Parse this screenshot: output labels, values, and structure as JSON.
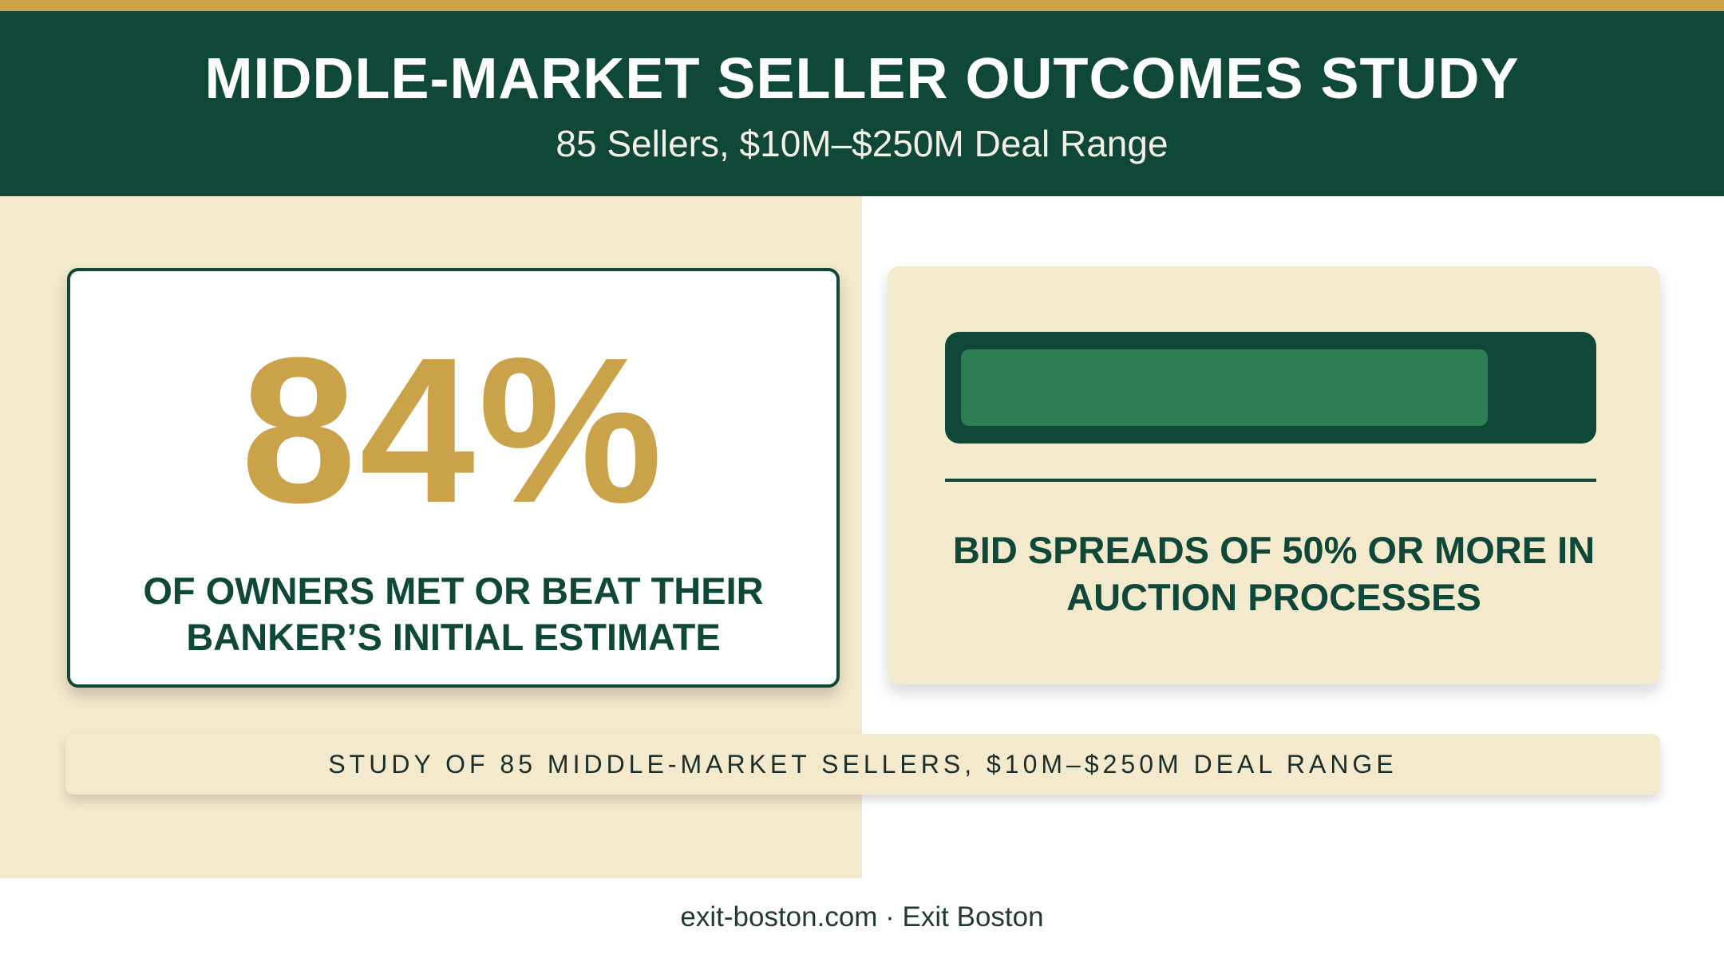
{
  "header": {
    "title": "MIDDLE-MARKET SELLER OUTCOMES STUDY",
    "subtitle": "85 Sellers, $10M–$250M Deal Range"
  },
  "stat_card": {
    "value": "84%",
    "caption": "OF OWNERS MET OR BEAT THEIR BANKER’S INITIAL ESTIMATE"
  },
  "bar_card": {
    "fill_fraction": 0.85,
    "caption": "BID SPREADS OF 50% OR MORE IN AUCTION PROCESSES"
  },
  "footnote": "STUDY OF 85 MIDDLE-MARKET SELLERS, $10M–$250M DEAL RANGE",
  "footer": "exit-boston.com · Exit Boston",
  "colors": {
    "primary_green": "#0f4739",
    "accent_gold": "#c9a24a",
    "bar_fill_green": "#2e7d54",
    "cream": "#f3e9cd"
  }
}
